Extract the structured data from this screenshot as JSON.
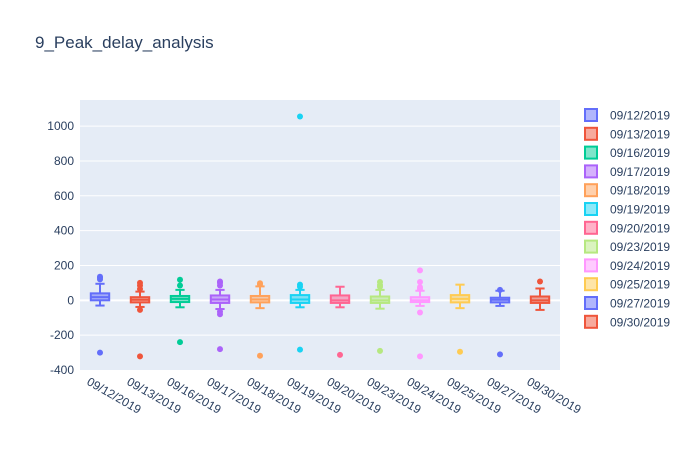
{
  "chart_data": {
    "type": "box",
    "title": "9_Peak_delay_analysis",
    "xlabel": "",
    "ylabel": "",
    "ylim": [
      -400,
      1150
    ],
    "yticks": [
      -400,
      -200,
      0,
      200,
      400,
      600,
      800,
      1000
    ],
    "grid": true,
    "legend_position": "right",
    "categories": [
      "09/12/2019",
      "09/13/2019",
      "09/16/2019",
      "09/17/2019",
      "09/18/2019",
      "09/19/2019",
      "09/20/2019",
      "09/23/2019",
      "09/24/2019",
      "09/25/2019",
      "09/27/2019",
      "09/30/2019"
    ],
    "series": [
      {
        "name": "09/12/2019",
        "color": "#636efa",
        "whisker_low": -30,
        "q1": 0,
        "median": 18,
        "q3": 40,
        "whisker_high": 95,
        "outliers": [
          120,
          130,
          135,
          -300
        ]
      },
      {
        "name": "09/13/2019",
        "color": "#EF553B",
        "whisker_low": -38,
        "q1": -12,
        "median": 3,
        "q3": 18,
        "whisker_high": 50,
        "outliers": [
          65,
          85,
          100,
          -55,
          -322
        ]
      },
      {
        "name": "09/16/2019",
        "color": "#00cc96",
        "whisker_low": -40,
        "q1": -10,
        "median": 8,
        "q3": 25,
        "whisker_high": 60,
        "outliers": [
          85,
          118,
          -240
        ]
      },
      {
        "name": "09/17/2019",
        "color": "#ab63fa",
        "whisker_low": -50,
        "q1": -15,
        "median": 5,
        "q3": 28,
        "whisker_high": 60,
        "outliers": [
          85,
          100,
          108,
          -65,
          -80,
          -280
        ]
      },
      {
        "name": "09/18/2019",
        "color": "#FFA15A",
        "whisker_low": -45,
        "q1": -12,
        "median": 5,
        "q3": 25,
        "whisker_high": 80,
        "outliers": [
          92,
          98,
          -318
        ]
      },
      {
        "name": "09/19/2019",
        "color": "#19d3f3",
        "whisker_low": -40,
        "q1": -15,
        "median": 5,
        "q3": 30,
        "whisker_high": 60,
        "outliers": [
          78,
          90,
          1055,
          -283
        ]
      },
      {
        "name": "09/20/2019",
        "color": "#FF6692",
        "whisker_low": -40,
        "q1": -15,
        "median": 0,
        "q3": 28,
        "whisker_high": 78,
        "outliers": [
          -313
        ]
      },
      {
        "name": "09/23/2019",
        "color": "#B6E880",
        "whisker_low": -48,
        "q1": -15,
        "median": 0,
        "q3": 22,
        "whisker_high": 60,
        "outliers": [
          78,
          88,
          105,
          -290
        ]
      },
      {
        "name": "09/24/2019",
        "color": "#FF97FF",
        "whisker_low": -32,
        "q1": -10,
        "median": 0,
        "q3": 18,
        "whisker_high": 55,
        "outliers": [
          65,
          75,
          105,
          172,
          -70,
          -322
        ]
      },
      {
        "name": "09/25/2019",
        "color": "#FECB52",
        "whisker_low": -45,
        "q1": -12,
        "median": 8,
        "q3": 30,
        "whisker_high": 90,
        "outliers": [
          -295
        ]
      },
      {
        "name": "09/27/2019",
        "color": "#636efa",
        "whisker_low": -32,
        "q1": -12,
        "median": 3,
        "q3": 15,
        "whisker_high": 55,
        "outliers": [
          60,
          -310
        ]
      },
      {
        "name": "09/30/2019",
        "color": "#EF553B",
        "whisker_low": -55,
        "q1": -15,
        "median": 0,
        "q3": 22,
        "whisker_high": 68,
        "outliers": [
          108
        ]
      }
    ]
  }
}
